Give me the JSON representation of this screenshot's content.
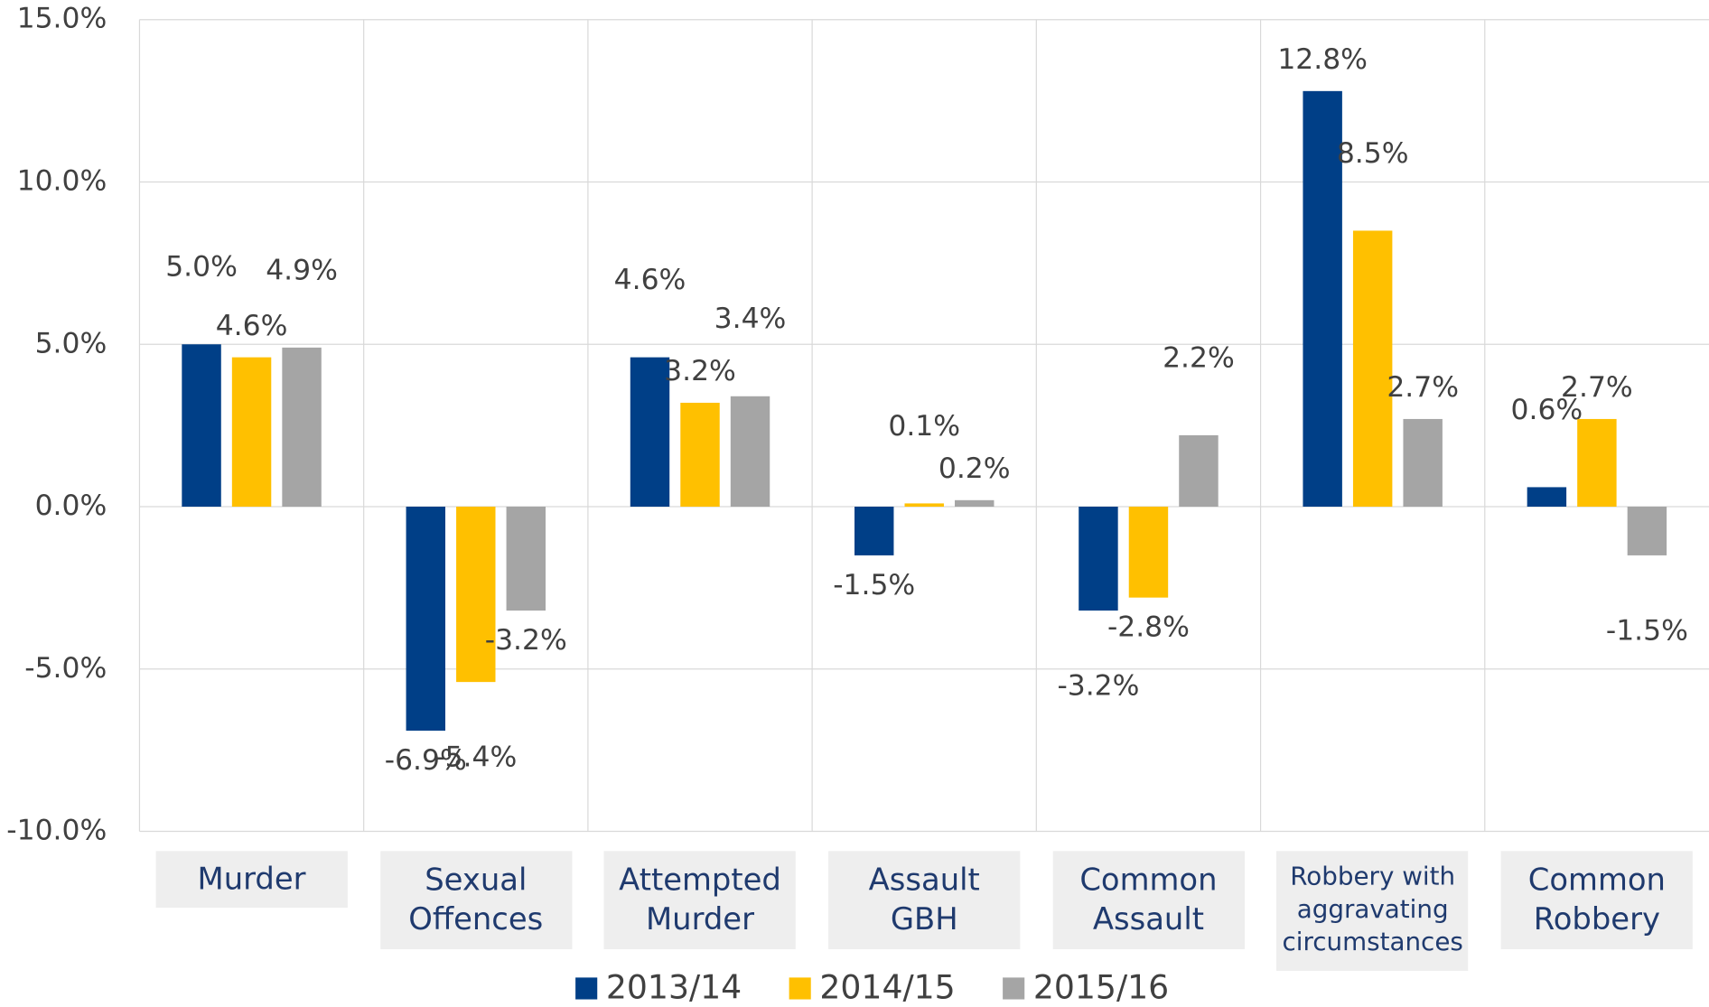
{
  "chart_data": {
    "type": "bar",
    "categories": [
      "Murder",
      "Sexual Offences",
      "Attempted Murder",
      "Assault GBH",
      "Common Assault",
      "Robbery with aggravating circumstances",
      "Common Robbery"
    ],
    "series": [
      {
        "name": "2013/14",
        "color": "#003f87",
        "values": [
          5.0,
          -6.9,
          4.6,
          -1.5,
          -3.2,
          12.8,
          0.6
        ],
        "value_labels": [
          "5.0%",
          "-6.9%",
          "4.6%",
          "-1.5%",
          "-3.2%",
          "12.8%",
          "0.6%"
        ]
      },
      {
        "name": "2014/15",
        "color": "#ffc000",
        "values": [
          4.6,
          -5.4,
          3.2,
          0.1,
          -2.8,
          8.5,
          2.7
        ],
        "value_labels": [
          "4.6%",
          "-5.4%",
          "3.2%",
          "0.1%",
          "-2.8%",
          "8.5%",
          "2.7%"
        ]
      },
      {
        "name": "2015/16",
        "color": "#a5a5a5",
        "values": [
          4.9,
          -3.2,
          3.4,
          0.2,
          2.2,
          2.7,
          -1.5
        ],
        "value_labels": [
          "4.9%",
          "-3.2%",
          "3.4%",
          "0.2%",
          "2.2%",
          "2.7%",
          "-1.5%"
        ]
      }
    ],
    "ylim": [
      -10,
      15
    ],
    "yticks": [
      {
        "value": -10,
        "label": "-10.0%"
      },
      {
        "value": -5,
        "label": "-5.0%"
      },
      {
        "value": 0,
        "label": "0.0%"
      },
      {
        "value": 5,
        "label": "5.0%"
      },
      {
        "value": 10,
        "label": "10.0%"
      },
      {
        "value": 15,
        "label": "15.0%"
      }
    ],
    "grid": true,
    "legend": "bottom"
  }
}
